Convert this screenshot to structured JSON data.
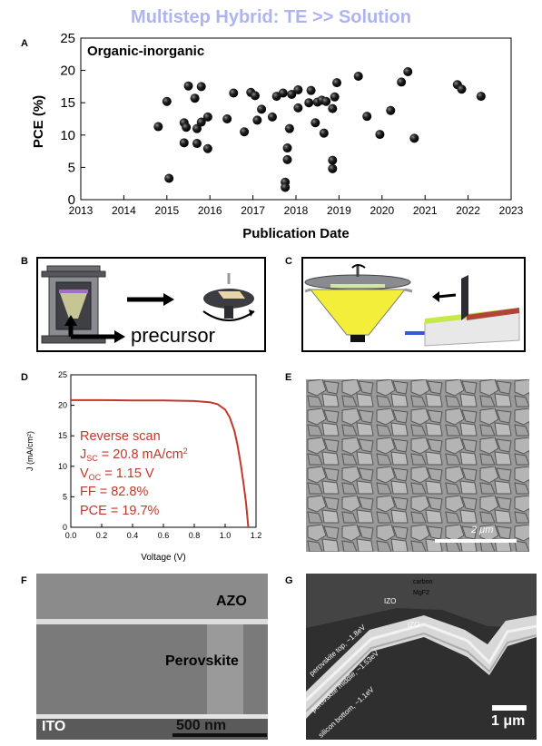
{
  "figure_title": "Multistep Hybrid: TE >> Solution",
  "panels": {
    "a": "A",
    "b": "B",
    "c": "C",
    "d": "D",
    "e": "E",
    "f": "F",
    "g": "G"
  },
  "chart_data": [
    {
      "type": "scatter",
      "panel": "A",
      "annotation": "Organic-inorganic",
      "ylabel": "PCE (%)",
      "xlabel": "Publication Date",
      "xlim": [
        2013,
        2023
      ],
      "ylim": [
        0,
        25
      ],
      "xticks": [
        2013,
        2014,
        2015,
        2016,
        2017,
        2018,
        2019,
        2020,
        2021,
        2022,
        2023
      ],
      "yticks": [
        0,
        5,
        10,
        15,
        20,
        25
      ],
      "grid": false,
      "marker": "black sphere",
      "points": [
        [
          2014.8,
          11.3
        ],
        [
          2015.0,
          15.2
        ],
        [
          2015.05,
          3.3
        ],
        [
          2015.4,
          11.9
        ],
        [
          2015.4,
          8.8
        ],
        [
          2015.45,
          11.2
        ],
        [
          2015.5,
          17.6
        ],
        [
          2015.65,
          15.7
        ],
        [
          2015.7,
          11.0
        ],
        [
          2015.7,
          8.7
        ],
        [
          2015.8,
          17.5
        ],
        [
          2015.8,
          12.0
        ],
        [
          2015.95,
          12.8
        ],
        [
          2015.95,
          7.9
        ],
        [
          2016.4,
          12.5
        ],
        [
          2016.55,
          16.5
        ],
        [
          2016.8,
          10.5
        ],
        [
          2016.95,
          16.6
        ],
        [
          2017.05,
          16.1
        ],
        [
          2017.1,
          12.3
        ],
        [
          2017.2,
          14.0
        ],
        [
          2017.45,
          12.8
        ],
        [
          2017.55,
          16.0
        ],
        [
          2017.7,
          16.5
        ],
        [
          2017.75,
          2.7
        ],
        [
          2017.75,
          1.9
        ],
        [
          2017.8,
          6.2
        ],
        [
          2017.8,
          8.0
        ],
        [
          2017.85,
          11.0
        ],
        [
          2017.9,
          16.3
        ],
        [
          2018.05,
          17.0
        ],
        [
          2018.05,
          14.2
        ],
        [
          2018.3,
          15.0
        ],
        [
          2018.35,
          16.9
        ],
        [
          2018.45,
          11.9
        ],
        [
          2018.5,
          15.1
        ],
        [
          2018.6,
          15.4
        ],
        [
          2018.65,
          10.3
        ],
        [
          2018.7,
          15.2
        ],
        [
          2018.85,
          4.8
        ],
        [
          2018.85,
          6.1
        ],
        [
          2018.85,
          14.1
        ],
        [
          2018.9,
          15.9
        ],
        [
          2018.95,
          18.1
        ],
        [
          2019.45,
          19.1
        ],
        [
          2019.65,
          12.9
        ],
        [
          2019.95,
          10.1
        ],
        [
          2020.2,
          13.8
        ],
        [
          2020.45,
          18.2
        ],
        [
          2020.6,
          19.8
        ],
        [
          2020.75,
          9.5
        ],
        [
          2021.75,
          17.8
        ],
        [
          2021.85,
          17.1
        ],
        [
          2022.3,
          16.0
        ]
      ]
    },
    {
      "type": "line",
      "panel": "D",
      "xlabel": "Voltage (V)",
      "ylabel": "J (mA/cm²)",
      "xlim": [
        0.0,
        1.2
      ],
      "ylim": [
        0,
        25
      ],
      "xticks": [
        "0.0",
        "0.2",
        "0.4",
        "0.6",
        "0.8",
        "1.0",
        "1.2"
      ],
      "yticks": [
        "0",
        "5",
        "10",
        "15",
        "20",
        "25"
      ],
      "series_color": "#c0392b",
      "points": [
        [
          0.0,
          20.85
        ],
        [
          0.2,
          20.85
        ],
        [
          0.4,
          20.8
        ],
        [
          0.6,
          20.8
        ],
        [
          0.8,
          20.7
        ],
        [
          0.9,
          20.5
        ],
        [
          0.95,
          20.2
        ],
        [
          1.0,
          19.3
        ],
        [
          1.03,
          18.0
        ],
        [
          1.06,
          15.8
        ],
        [
          1.08,
          13.5
        ],
        [
          1.1,
          10.5
        ],
        [
          1.12,
          7.0
        ],
        [
          1.135,
          4.0
        ],
        [
          1.15,
          0.0
        ]
      ],
      "legend_lines": {
        "l1": "Reverse scan",
        "l2a": "J",
        "l2sub": "SC",
        "l2b": " = 20.8 mA/cm",
        "l2sup": "2",
        "l3a": "V",
        "l3sub": "OC",
        "l3b": " = 1.15 V",
        "l4": "FF = 82.8%",
        "l5": "PCE = 19.7%"
      }
    }
  ],
  "panel_b": {
    "precursor_label": "precursor"
  },
  "panel_e": {
    "scale_label": "2 μm"
  },
  "panel_f": {
    "top_label": "AZO",
    "middle_label": "Perovskite",
    "bottom_label": "ITO",
    "scale_label": "500 nm"
  },
  "panel_g": {
    "carbon": "carbon",
    "mgf2": "MgF2",
    "izo_upper": "IZO",
    "izo_lower": "IZO",
    "layer_top": "perovskite top, ~1.8eV",
    "layer_middle": "perovskite middle, ~1.53eV",
    "layer_bottom": "silicon bottom, ~1.1eV",
    "scale_label": "1 μm"
  },
  "colors": {
    "title": "#aeb4f0",
    "curve": "#c0392b",
    "legend_text": "#c0392b",
    "funnel_yellow": "#f2ee3a",
    "substrate_red": "#b0443a",
    "substrate_green": "#c7e84a"
  }
}
